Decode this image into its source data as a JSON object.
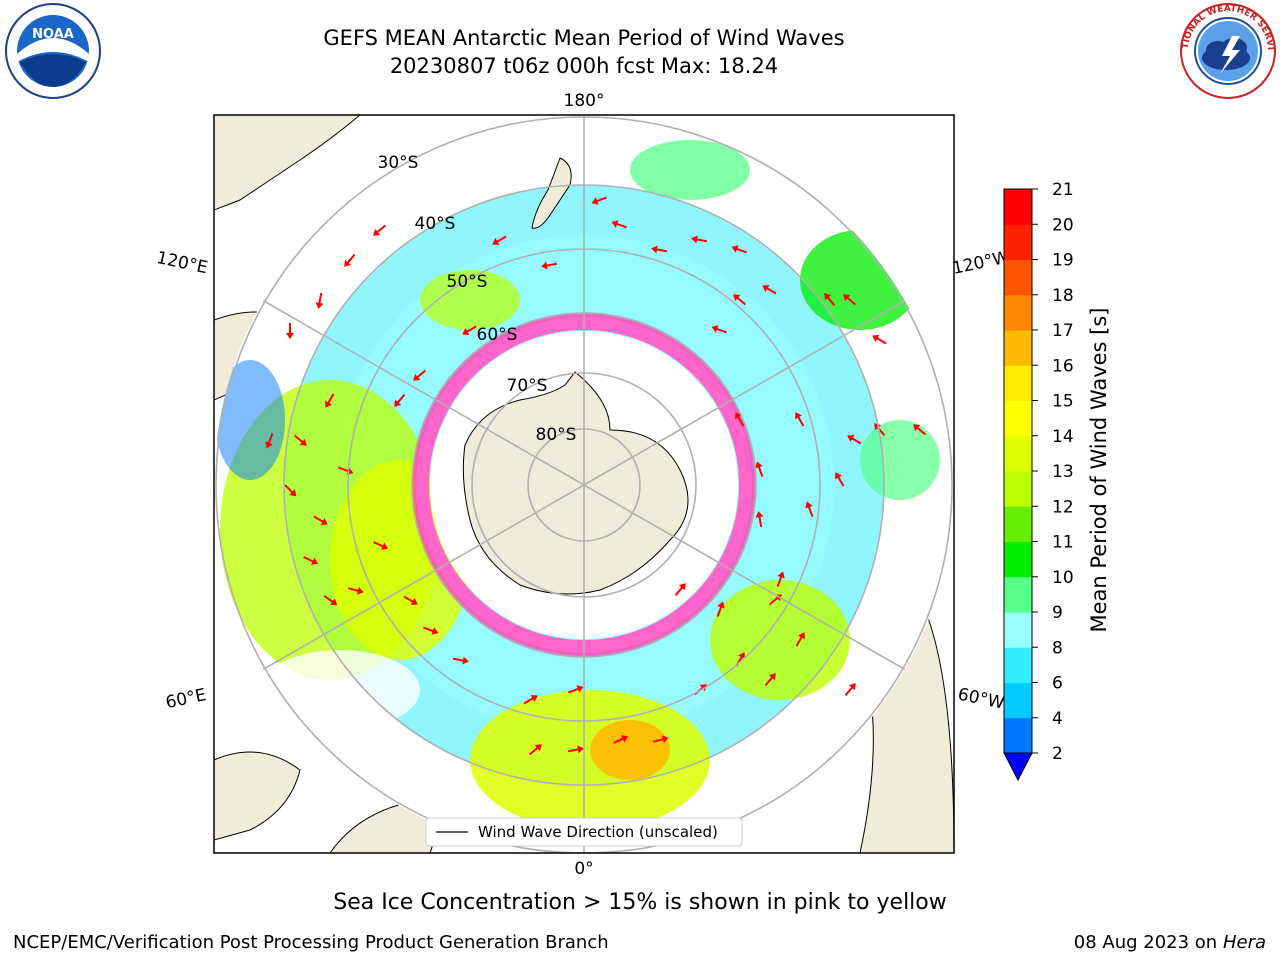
{
  "header": {
    "title_line1": "GEFS MEAN Antarctic Mean Period of Wind Waves",
    "title_line2": "20230807 t06z 000h fcst   Max: 18.24"
  },
  "logos": {
    "left": {
      "name": "noaa-logo",
      "text": "NOAA",
      "ring_text": "NATIONAL OCEANIC AND ATMOSPHERIC ADMINISTRATION · U.S. DEPARTMENT OF COMMERCE"
    },
    "right": {
      "name": "nws-logo",
      "ring_text": "NATIONAL WEATHER SERVICE"
    }
  },
  "map": {
    "projection": "south-polar-stereographic",
    "lon_labels": {
      "top": "180°",
      "bottom": "0°",
      "upper_left": "120°E",
      "upper_right": "120°W",
      "lower_left": "60°E",
      "lower_right": "60°W"
    },
    "lat_labels": [
      "30°S",
      "40°S",
      "50°S",
      "60°S",
      "70°S",
      "80°S"
    ],
    "legend_label": "Wind Wave Direction (unscaled)",
    "colors": {
      "land": "#efedda",
      "sea_ice": "#ff66cc",
      "arrow": "#ff0000"
    }
  },
  "colorbar": {
    "label": "Mean Period of Wind Waves [s]",
    "ticks": [
      "2",
      "4",
      "6",
      "8",
      "9",
      "10",
      "11",
      "12",
      "13",
      "14",
      "15",
      "16",
      "17",
      "18",
      "19",
      "20",
      "21"
    ],
    "colors": [
      "#0077ff",
      "#00ccff",
      "#33eeff",
      "#99ffff",
      "#55ff88",
      "#00ee00",
      "#66ee00",
      "#bbff00",
      "#ddff00",
      "#ffff00",
      "#ffee00",
      "#ffbb00",
      "#ff8800",
      "#ff5500",
      "#ff2200",
      "#ff0000"
    ],
    "extend_color": "#0000ff"
  },
  "footer": {
    "note": "Sea Ice Concentration > 15% is shown in pink to yellow",
    "credit": "NCEP/EMC/Verification Post Processing Product Generation Branch",
    "date": "08 Aug 2023 on",
    "machine": "Hera"
  }
}
